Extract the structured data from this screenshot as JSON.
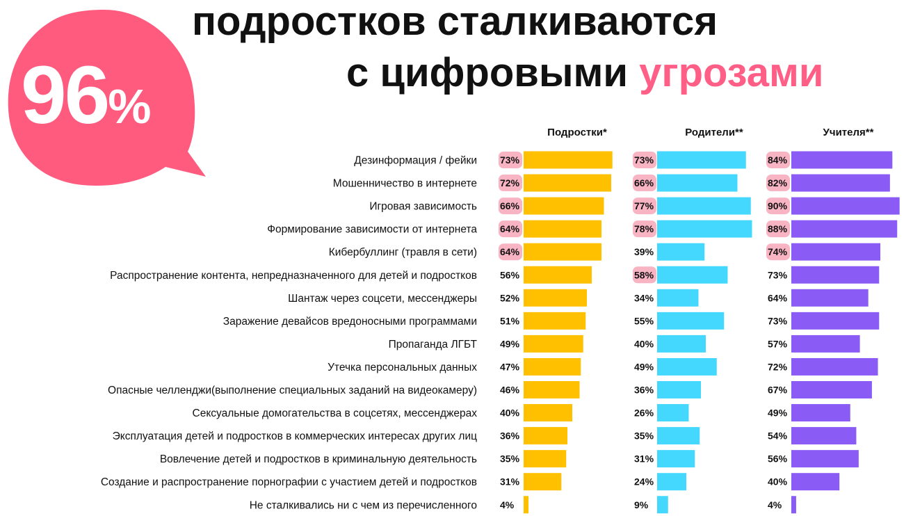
{
  "hero": {
    "number": "96",
    "sign": "%",
    "title_line1": "подростков сталкиваются",
    "title_line2_plain": "с цифровыми",
    "title_line2_accent": "угрозами"
  },
  "colors": {
    "accent": "#ff5f86",
    "bubble": "#ff5b7f",
    "teens": "#ffc000",
    "parents": "#45d8ff",
    "teachers": "#8a5cf5",
    "highlight": "#f9b4c4"
  },
  "chart_data": {
    "type": "bar",
    "orientation": "horizontal",
    "title": "подростков сталкиваются с цифровыми угрозами",
    "categories": [
      "Дезинформация / фейки",
      "Мошенничество в интернете",
      "Игровая зависимость",
      "Формирование зависимости от интернета",
      "Кибербуллинг (травля в сети)",
      "Распространение контента, непредназначенного для детей и подростков",
      "Шантаж через соцсети, мессенджеры",
      "Заражение девайсов вредоносными программами",
      "Пропаганда ЛГБТ",
      "Утечка персональных данных",
      "Опасные челленджи(выполнение специальных заданий на видеокамеру)",
      "Сексуальные домогательства в соцсетях, мессенджерах",
      "Эксплуатация детей и подростков в коммерческих интересах других лиц",
      "Вовлечение детей и подростков в криминальную деятельность",
      "Создание и распространение порнографии с участием детей и подростков",
      "Не сталкивались ни с чем из перечисленного"
    ],
    "series": [
      {
        "name": "Подростки*",
        "color": "#ffc000",
        "values": [
          73,
          72,
          66,
          64,
          64,
          56,
          52,
          51,
          49,
          47,
          46,
          40,
          36,
          35,
          31,
          4
        ],
        "highlighted": [
          true,
          true,
          true,
          true,
          true,
          false,
          false,
          false,
          false,
          false,
          false,
          false,
          false,
          false,
          false,
          false
        ]
      },
      {
        "name": "Родители**",
        "color": "#45d8ff",
        "values": [
          73,
          66,
          77,
          78,
          39,
          58,
          34,
          55,
          40,
          49,
          36,
          26,
          35,
          31,
          24,
          9
        ],
        "highlighted": [
          true,
          true,
          true,
          true,
          false,
          true,
          false,
          false,
          false,
          false,
          false,
          false,
          false,
          false,
          false,
          false
        ]
      },
      {
        "name": "Учителя**",
        "color": "#8a5cf5",
        "values": [
          84,
          82,
          90,
          88,
          74,
          73,
          64,
          73,
          57,
          72,
          67,
          49,
          54,
          56,
          40,
          4
        ],
        "highlighted": [
          true,
          true,
          true,
          true,
          true,
          false,
          false,
          false,
          false,
          false,
          false,
          false,
          false,
          false,
          false,
          false
        ]
      }
    ],
    "value_suffix": "%",
    "xlim": [
      0,
      100
    ],
    "grid": false,
    "legend": "column headers above each bar group"
  }
}
